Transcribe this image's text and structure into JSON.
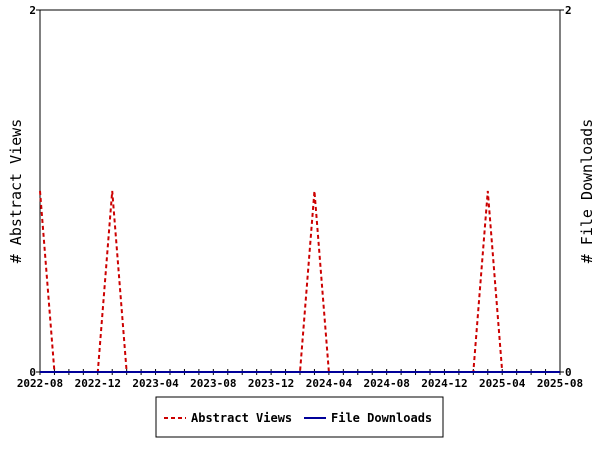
{
  "chart_data": {
    "type": "line",
    "y_left_label": "# Abstract Views",
    "y_right_label": "# File Downloads",
    "y_left_range": [
      0,
      2
    ],
    "y_right_range": [
      0,
      2
    ],
    "y_left_ticks": [
      "0",
      "2"
    ],
    "y_right_ticks": [
      "0",
      "2"
    ],
    "x_range": [
      "2022-08",
      "2025-08"
    ],
    "x_tick_labels": [
      "2022-08",
      "2022-12",
      "2023-04",
      "2023-08",
      "2023-12",
      "2024-04",
      "2024-08",
      "2024-12",
      "2025-04",
      "2025-08"
    ],
    "months": [
      "2022-08",
      "2022-09",
      "2022-10",
      "2022-11",
      "2022-12",
      "2023-01",
      "2023-02",
      "2023-03",
      "2023-04",
      "2023-05",
      "2023-06",
      "2023-07",
      "2023-08",
      "2023-09",
      "2023-10",
      "2023-11",
      "2023-12",
      "2024-01",
      "2024-02",
      "2024-03",
      "2024-04",
      "2024-05",
      "2024-06",
      "2024-07",
      "2024-08",
      "2024-09",
      "2024-10",
      "2024-11",
      "2024-12",
      "2025-01",
      "2025-02",
      "2025-03",
      "2025-04",
      "2025-05",
      "2025-06",
      "2025-07",
      "2025-08"
    ],
    "legend_position": "bottom",
    "grid": false,
    "series": [
      {
        "name": "Abstract Views",
        "axis": "left",
        "color": "#cc0000",
        "style": "dashed",
        "values": [
          1,
          0,
          0,
          0,
          0,
          1,
          0,
          0,
          0,
          0,
          0,
          0,
          0,
          0,
          0,
          0,
          0,
          0,
          0,
          1,
          0,
          0,
          0,
          0,
          0,
          0,
          0,
          0,
          0,
          0,
          0,
          1,
          0,
          0,
          0,
          0,
          0
        ]
      },
      {
        "name": "File Downloads",
        "axis": "right",
        "color": "#000099",
        "style": "solid",
        "values": [
          0,
          0,
          0,
          0,
          0,
          0,
          0,
          0,
          0,
          0,
          0,
          0,
          0,
          0,
          0,
          0,
          0,
          0,
          0,
          0,
          0,
          0,
          0,
          0,
          0,
          0,
          0,
          0,
          0,
          0,
          0,
          0,
          0,
          0,
          0,
          0,
          0
        ]
      }
    ]
  }
}
